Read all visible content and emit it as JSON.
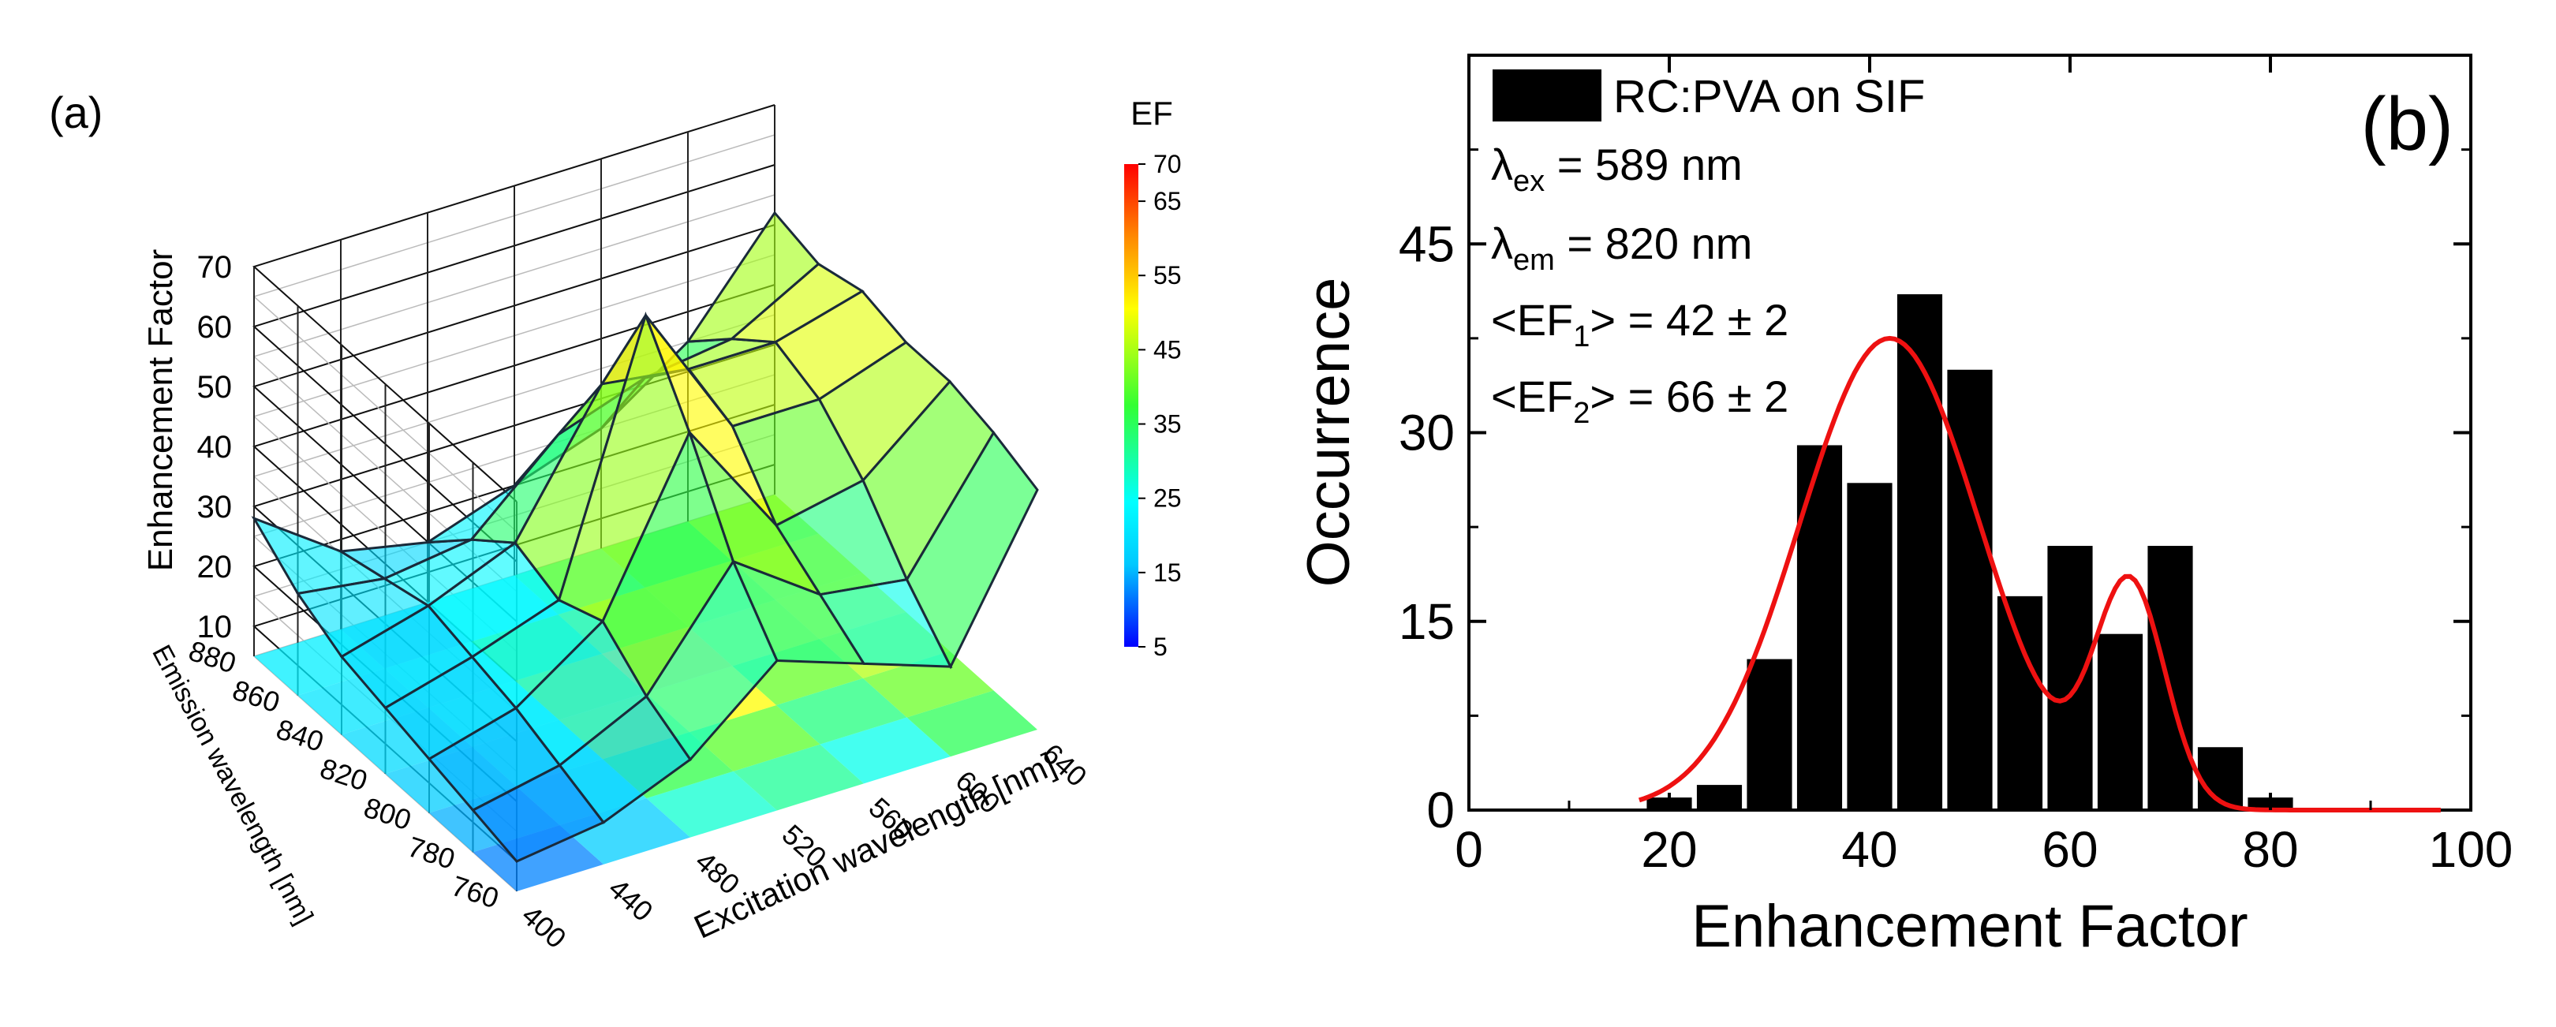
{
  "chart_data": [
    {
      "type": "surface3d",
      "panel_label": "(a)",
      "zlabel": "Enhancement Factor",
      "ylabel": "Emission wavelength [nm]",
      "xlabel": "Excitation wavelength [nm]",
      "zlim": [
        5,
        70
      ],
      "z_ticks": [
        "10",
        "20",
        "30",
        "40",
        "50",
        "60",
        "70"
      ],
      "emission_ticks": [
        "760",
        "780",
        "800",
        "820",
        "840",
        "860",
        "880"
      ],
      "excitation_ticks": [
        "400",
        "440",
        "480",
        "520",
        "560",
        "600",
        "640"
      ],
      "excitation": [
        400,
        440,
        480,
        520,
        560,
        600,
        640
      ],
      "emission": [
        760,
        780,
        800,
        820,
        840,
        860,
        880
      ],
      "z": [
        [
          10,
          12,
          18,
          30,
          25,
          20,
          45
        ],
        [
          12,
          15,
          22,
          40,
          30,
          28,
          48
        ],
        [
          14,
          18,
          28,
          55,
          35,
          38,
          50
        ],
        [
          16,
          20,
          25,
          68,
          45,
          45,
          50
        ],
        [
          18,
          22,
          28,
          50,
          48,
          48,
          52
        ],
        [
          22,
          20,
          22,
          35,
          40,
          42,
          50
        ],
        [
          28,
          18,
          15,
          20,
          25,
          35,
          52
        ]
      ],
      "colorbar": {
        "title": "EF",
        "ticks": [
          "70",
          "65",
          "55",
          "45",
          "35",
          "25",
          "15",
          "5"
        ],
        "colors": [
          "#0000ff",
          "#00c8ff",
          "#00ffff",
          "#33ff33",
          "#ffff00",
          "#ff8800",
          "#ff0000"
        ]
      },
      "grid": true
    },
    {
      "type": "histogram",
      "panel_label": "(b)",
      "xlabel": "Enhancement Factor",
      "ylabel": "Occurrence",
      "xlim": [
        0,
        100
      ],
      "ylim": [
        0,
        60
      ],
      "x_ticks": [
        "0",
        "20",
        "40",
        "60",
        "80",
        "100"
      ],
      "y_ticks": [
        "0",
        "15",
        "30",
        "45"
      ],
      "bin_centers": [
        20,
        25,
        30,
        35,
        40,
        45,
        50,
        55,
        60,
        65,
        70,
        75,
        80
      ],
      "values": [
        1,
        2,
        12,
        29,
        26,
        41,
        35,
        17,
        21,
        14,
        21,
        5,
        1
      ],
      "bar_color": "#000000",
      "fit": {
        "color": "#ee1111",
        "peaks": [
          {
            "center": 42,
            "amplitude": 37.5,
            "sigma": 9
          },
          {
            "center": 66,
            "amplitude": 17.5,
            "sigma": 3.5
          }
        ]
      },
      "legend": {
        "label": "RC:PVA on SIF",
        "position": "top-left",
        "lines": [
          {
            "symbol": "λ",
            "sub": "ex",
            "rest": " = 589 nm"
          },
          {
            "symbol": "λ",
            "sub": "em",
            "rest": " = 820 nm"
          },
          {
            "symbol": "<EF",
            "sub": "1",
            "rest": "> = 42 ± 2"
          },
          {
            "symbol": "<EF",
            "sub": "2",
            "rest": "> = 66 ± 2"
          }
        ]
      }
    }
  ]
}
